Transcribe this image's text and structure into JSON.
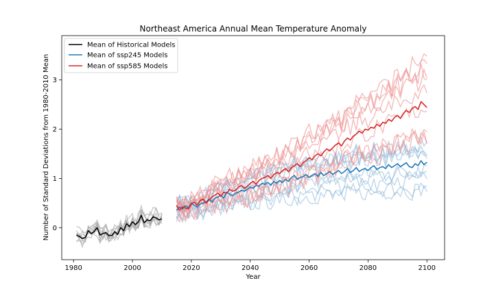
{
  "chart_data": {
    "type": "line",
    "title": "Northeast America Annual Mean Temperature Anomaly",
    "xlabel": "Year",
    "ylabel": "Number of Standard Deviations from 1980-2010 Mean",
    "xlim": [
      1976,
      2106
    ],
    "ylim": [
      -0.65,
      3.9
    ],
    "xticks": [
      1980,
      2000,
      2020,
      2040,
      2060,
      2080,
      2100
    ],
    "yticks": [
      0,
      1,
      2,
      3
    ],
    "grid": false,
    "legend_position": "top-left",
    "colors": {
      "historical": "#000000",
      "ssp245": "#1f77b4",
      "ssp585": "#d62728",
      "historical_members": "#9e9e9e",
      "ssp245_members": "#7fb0d6",
      "ssp585_members": "#ec8f8f"
    },
    "legend": [
      {
        "label": "Mean of Historical Models",
        "color": "#000000"
      },
      {
        "label": "Mean of ssp245 Models",
        "color": "#1f77b4"
      },
      {
        "label": "Mean of ssp585 Models",
        "color": "#d62728"
      }
    ],
    "series": [
      {
        "name": "Mean of Historical Models",
        "x_start": 1981,
        "values": [
          -0.15,
          -0.18,
          -0.22,
          -0.2,
          -0.06,
          -0.12,
          -0.08,
          0.0,
          -0.15,
          -0.12,
          -0.1,
          -0.16,
          -0.16,
          -0.08,
          -0.14,
          0.0,
          -0.06,
          0.08,
          0.02,
          0.12,
          0.06,
          0.12,
          0.25,
          0.1,
          0.16,
          0.14,
          0.22,
          0.2,
          0.16,
          0.18
        ]
      },
      {
        "name": "Mean of ssp245 Models",
        "x_start": 2015,
        "values": [
          0.35,
          0.42,
          0.38,
          0.45,
          0.4,
          0.5,
          0.46,
          0.42,
          0.48,
          0.5,
          0.52,
          0.58,
          0.52,
          0.6,
          0.62,
          0.66,
          0.6,
          0.72,
          0.68,
          0.65,
          0.7,
          0.72,
          0.76,
          0.74,
          0.78,
          0.82,
          0.8,
          0.86,
          0.84,
          0.9,
          0.88,
          0.92,
          0.86,
          0.94,
          0.9,
          0.96,
          0.92,
          0.98,
          0.94,
          1.02,
          1.06,
          0.98,
          1.02,
          1.04,
          1.08,
          1.02,
          1.06,
          1.1,
          1.04,
          1.12,
          1.06,
          1.1,
          1.14,
          1.08,
          1.12,
          1.16,
          1.1,
          1.14,
          1.2,
          1.12,
          1.16,
          1.22,
          1.14,
          1.18,
          1.2,
          1.16,
          1.22,
          1.26,
          1.18,
          1.22,
          1.24,
          1.2,
          1.28,
          1.22,
          1.26,
          1.3,
          1.24,
          1.28,
          1.32,
          1.24,
          1.22,
          1.3,
          1.26,
          1.36,
          1.28,
          1.33
        ]
      },
      {
        "name": "Mean of ssp585 Models",
        "x_start": 2015,
        "values": [
          0.45,
          0.36,
          0.42,
          0.4,
          0.38,
          0.48,
          0.52,
          0.46,
          0.55,
          0.58,
          0.5,
          0.56,
          0.62,
          0.66,
          0.7,
          0.64,
          0.72,
          0.7,
          0.78,
          0.74,
          0.76,
          0.82,
          0.86,
          0.8,
          0.84,
          0.9,
          0.94,
          0.88,
          0.96,
          1.0,
          1.02,
          1.06,
          1.0,
          1.08,
          1.12,
          1.1,
          1.16,
          1.2,
          1.14,
          1.22,
          1.26,
          1.3,
          1.24,
          1.32,
          1.36,
          1.42,
          1.38,
          1.46,
          1.5,
          1.46,
          1.54,
          1.6,
          1.56,
          1.62,
          1.68,
          1.72,
          1.66,
          1.76,
          1.82,
          1.78,
          1.86,
          1.9,
          1.96,
          1.92,
          2.0,
          1.98,
          2.04,
          2.02,
          2.1,
          2.06,
          2.14,
          2.12,
          2.2,
          2.16,
          2.24,
          2.28,
          2.22,
          2.32,
          2.38,
          2.34,
          2.42,
          2.46,
          2.4,
          2.56,
          2.5,
          2.44
        ]
      }
    ]
  }
}
